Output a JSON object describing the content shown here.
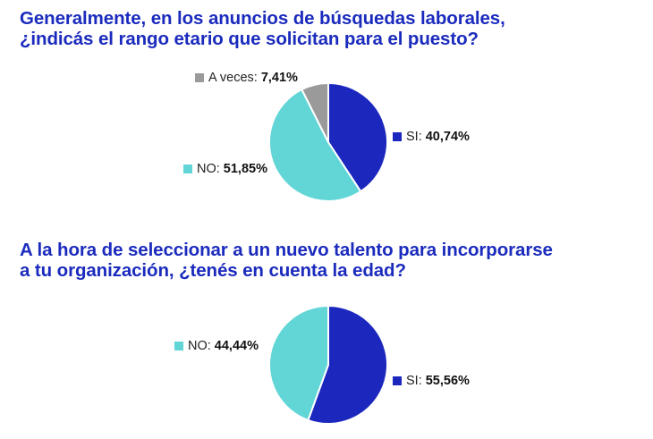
{
  "colors": {
    "si": "#1b27bd",
    "no": "#62d6d6",
    "a_veces": "#9a9a9a",
    "title": "#1b2bbd"
  },
  "chart_data": [
    {
      "type": "pie",
      "title": "Generalmente, en los anuncios de búsquedas laborales, ¿indicás el rango etario que solicitan para el puesto?",
      "categories": [
        "SI",
        "NO",
        "A veces"
      ],
      "values": [
        40.74,
        51.85,
        7.41
      ],
      "value_labels": [
        "40,74%",
        "51,85%",
        "7,41%"
      ],
      "colors": [
        "#1b27bd",
        "#62d6d6",
        "#9a9a9a"
      ],
      "start_angle": "12 o'clock, clockwise"
    },
    {
      "type": "pie",
      "title": "A la hora de seleccionar a un nuevo talento para incorporarse a tu organización, ¿tenés en cuenta la edad?",
      "categories": [
        "SI",
        "NO"
      ],
      "values": [
        55.56,
        44.44
      ],
      "value_labels": [
        "55,56%",
        "44,44%"
      ],
      "colors": [
        "#1b27bd",
        "#62d6d6"
      ],
      "start_angle": "12 o'clock, clockwise"
    }
  ],
  "chart1": {
    "title_line1": "Generalmente, en los anuncios de búsquedas laborales,",
    "title_line2": "¿indicás el rango etario que solicitan para el puesto?",
    "legend": {
      "a_veces": {
        "label": "A veces:",
        "value": "7,41%"
      },
      "si": {
        "label": "SI:",
        "value": "40,74%"
      },
      "no": {
        "label": "NO:",
        "value": "51,85%"
      }
    }
  },
  "chart2": {
    "title_line1": "A la hora de seleccionar a un nuevo talento para incorporarse",
    "title_line2": "a tu organización, ¿tenés en cuenta la edad?",
    "legend": {
      "no": {
        "label": "NO:",
        "value": "44,44%"
      },
      "si": {
        "label": "SI:",
        "value": "55,56%"
      }
    }
  }
}
